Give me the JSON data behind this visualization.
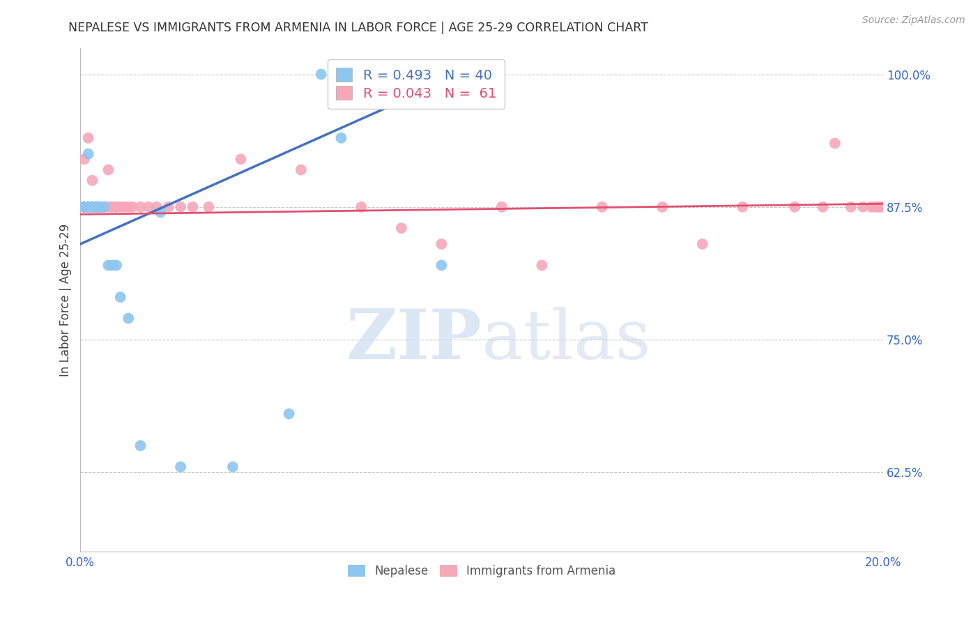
{
  "title": "NEPALESE VS IMMIGRANTS FROM ARMENIA IN LABOR FORCE | AGE 25-29 CORRELATION CHART",
  "source": "Source: ZipAtlas.com",
  "ylabel": "In Labor Force | Age 25-29",
  "xlim": [
    0.0,
    0.2
  ],
  "ylim": [
    0.55,
    1.025
  ],
  "yticks": [
    0.625,
    0.75,
    0.875,
    1.0
  ],
  "ytick_labels": [
    "62.5%",
    "75.0%",
    "87.5%",
    "100.0%"
  ],
  "xticks": [
    0.0,
    0.04,
    0.08,
    0.12,
    0.16,
    0.2
  ],
  "xtick_labels": [
    "0.0%",
    "",
    "",
    "",
    "",
    "20.0%"
  ],
  "nepalese_R": 0.493,
  "nepalese_N": 40,
  "armenia_R": 0.043,
  "armenia_N": 61,
  "nepalese_color": "#8dc6f0",
  "armenia_color": "#f7a8b8",
  "nepalese_line_color": "#4472c4",
  "armenia_line_color": "#e05070",
  "nepalese_x": [
    0.001,
    0.001,
    0.001,
    0.001,
    0.001,
    0.002,
    0.002,
    0.002,
    0.002,
    0.002,
    0.002,
    0.003,
    0.003,
    0.003,
    0.003,
    0.003,
    0.003,
    0.004,
    0.004,
    0.004,
    0.004,
    0.004,
    0.005,
    0.005,
    0.005,
    0.006,
    0.007,
    0.008,
    0.009,
    0.01,
    0.012,
    0.015,
    0.02,
    0.025,
    0.038,
    0.052,
    0.06,
    0.065,
    0.09,
    0.095
  ],
  "nepalese_y": [
    0.875,
    0.875,
    0.875,
    0.875,
    0.875,
    0.875,
    0.875,
    0.875,
    0.875,
    0.875,
    0.925,
    0.875,
    0.875,
    0.875,
    0.875,
    0.875,
    0.875,
    0.875,
    0.875,
    0.875,
    0.875,
    0.875,
    0.875,
    0.875,
    0.875,
    0.875,
    0.82,
    0.82,
    0.82,
    0.79,
    0.77,
    0.65,
    0.87,
    0.63,
    0.63,
    0.68,
    1.0,
    0.94,
    0.82,
    1.0
  ],
  "armenia_x": [
    0.001,
    0.001,
    0.001,
    0.001,
    0.002,
    0.002,
    0.002,
    0.002,
    0.003,
    0.003,
    0.003,
    0.003,
    0.003,
    0.004,
    0.004,
    0.004,
    0.004,
    0.005,
    0.005,
    0.005,
    0.006,
    0.006,
    0.006,
    0.007,
    0.007,
    0.008,
    0.008,
    0.009,
    0.009,
    0.01,
    0.011,
    0.012,
    0.013,
    0.015,
    0.017,
    0.019,
    0.022,
    0.025,
    0.028,
    0.032,
    0.04,
    0.055,
    0.07,
    0.08,
    0.09,
    0.105,
    0.115,
    0.13,
    0.145,
    0.155,
    0.165,
    0.178,
    0.185,
    0.188,
    0.192,
    0.195,
    0.197,
    0.198,
    0.199,
    0.199,
    0.2
  ],
  "armenia_y": [
    0.875,
    0.875,
    0.875,
    0.92,
    0.875,
    0.875,
    0.875,
    0.94,
    0.875,
    0.875,
    0.875,
    0.9,
    0.875,
    0.875,
    0.875,
    0.875,
    0.875,
    0.875,
    0.875,
    0.875,
    0.875,
    0.875,
    0.875,
    0.875,
    0.91,
    0.875,
    0.875,
    0.875,
    0.875,
    0.875,
    0.875,
    0.875,
    0.875,
    0.875,
    0.875,
    0.875,
    0.875,
    0.875,
    0.875,
    0.875,
    0.92,
    0.91,
    0.875,
    0.855,
    0.84,
    0.875,
    0.82,
    0.875,
    0.875,
    0.84,
    0.875,
    0.875,
    0.875,
    0.935,
    0.875,
    0.875,
    0.875,
    0.875,
    0.875,
    0.875,
    0.875
  ],
  "nepalese_line_x": [
    0.0,
    0.095
  ],
  "nepalese_line_y": [
    0.84,
    1.0
  ],
  "armenia_line_x": [
    0.0,
    0.2
  ],
  "armenia_line_y": [
    0.868,
    0.878
  ],
  "watermark_zip": "ZIP",
  "watermark_atlas": "atlas",
  "background_color": "#ffffff",
  "grid_color": "#c8c8c8"
}
